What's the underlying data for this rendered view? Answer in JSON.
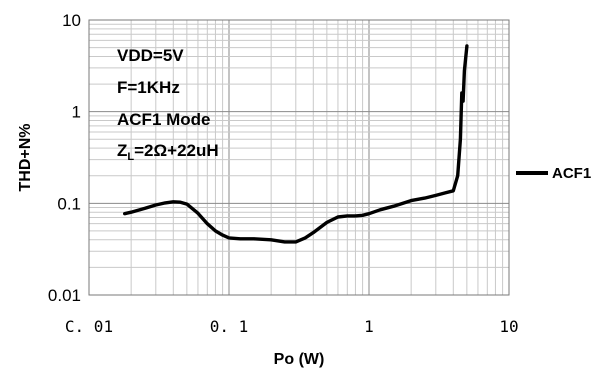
{
  "chart_data": {
    "type": "line",
    "xscale": "log",
    "yscale": "log",
    "xlim": [
      0.01,
      10
    ],
    "ylim": [
      0.01,
      10
    ],
    "grid": true,
    "xlabel": "Po (W)",
    "ylabel": "THD+N%",
    "x_tick_labels": [
      "C. 01",
      "0. 1",
      "1",
      "10"
    ],
    "y_tick_labels": [
      "0.01",
      "0.1",
      "1",
      "10"
    ],
    "annotations": [
      "VDD=5V",
      "F=1KHz",
      "ACF1 Mode"
    ],
    "annotation_z": {
      "base": "Z",
      "sub": "L",
      "rest": "=2Ω+22uH"
    },
    "legend": {
      "position": "right",
      "entries": [
        "ACF1"
      ]
    },
    "series": [
      {
        "name": "ACF1",
        "color": "#000000",
        "x": [
          0.018,
          0.02,
          0.025,
          0.03,
          0.035,
          0.04,
          0.045,
          0.05,
          0.06,
          0.07,
          0.08,
          0.09,
          0.1,
          0.12,
          0.15,
          0.2,
          0.25,
          0.3,
          0.35,
          0.4,
          0.5,
          0.6,
          0.7,
          0.8,
          0.9,
          1.0,
          1.2,
          1.5,
          2.0,
          2.5,
          3.0,
          3.5,
          4.0,
          4.3,
          4.5,
          4.6,
          4.7,
          4.8,
          5.0
        ],
        "y": [
          0.077,
          0.08,
          0.088,
          0.096,
          0.101,
          0.104,
          0.103,
          0.098,
          0.078,
          0.06,
          0.05,
          0.045,
          0.042,
          0.041,
          0.041,
          0.04,
          0.038,
          0.038,
          0.042,
          0.048,
          0.062,
          0.071,
          0.073,
          0.073,
          0.074,
          0.077,
          0.085,
          0.093,
          0.107,
          0.114,
          0.122,
          0.13,
          0.137,
          0.2,
          0.5,
          1.6,
          1.3,
          2.8,
          5.2
        ]
      }
    ]
  }
}
